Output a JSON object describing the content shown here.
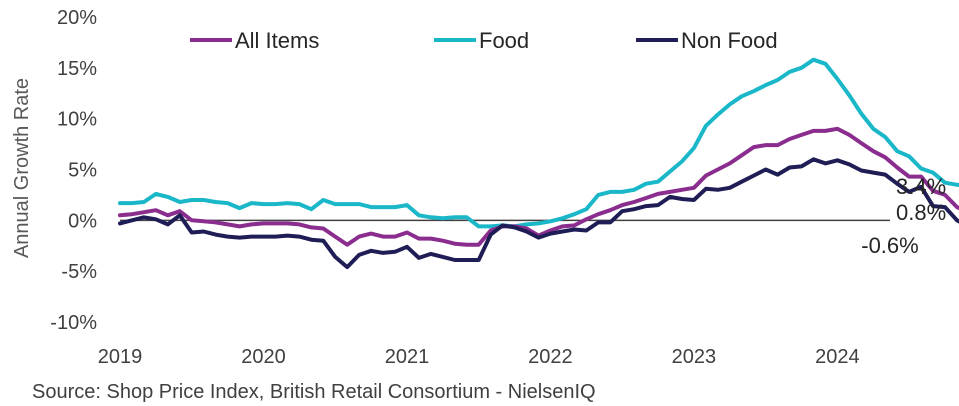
{
  "chart_data": {
    "type": "line",
    "ylabel": "Annual Growth Rate",
    "source": "Source: Shop Price Index, British Retail Consortium - NielsenIQ",
    "ylim": [
      -10,
      20
    ],
    "yticks": [
      -10,
      -5,
      0,
      5,
      10,
      15,
      20
    ],
    "ytick_labels": [
      "-10%",
      "-5%",
      "0%",
      "5%",
      "10%",
      "15%",
      "20%"
    ],
    "xlim": [
      2019.0,
      2024.75
    ],
    "xticks": [
      2019,
      2020,
      2021,
      2022,
      2023,
      2024
    ],
    "xtick_labels": [
      "2019",
      "2020",
      "2021",
      "2022",
      "2023",
      "2024"
    ],
    "legend_position": "top",
    "end_labels": [
      "3.4%",
      "0.8%",
      "-0.6%"
    ],
    "series": [
      {
        "name": "All Items",
        "color": "#8a2d8f",
        "values": [
          0.5,
          0.6,
          0.8,
          1.0,
          0.5,
          0.9,
          0.0,
          -0.1,
          -0.2,
          -0.4,
          -0.6,
          -0.4,
          -0.3,
          -0.3,
          -0.3,
          -0.4,
          -0.7,
          -0.8,
          -1.6,
          -2.4,
          -1.6,
          -1.3,
          -1.6,
          -1.6,
          -1.2,
          -1.8,
          -1.8,
          -2.0,
          -2.3,
          -2.4,
          -2.4,
          -1.0,
          -0.6,
          -0.6,
          -0.8,
          -1.5,
          -1.0,
          -0.6,
          -0.5,
          0.1,
          0.6,
          1.0,
          1.5,
          1.8,
          2.2,
          2.6,
          2.8,
          3.0,
          3.2,
          4.4,
          5.0,
          5.6,
          6.4,
          7.2,
          7.4,
          7.4,
          8.0,
          8.4,
          8.8,
          8.8,
          9.0,
          8.4,
          7.6,
          6.8,
          6.2,
          5.2,
          4.3,
          4.3,
          2.9,
          2.5,
          1.3,
          0.8
        ]
      },
      {
        "name": "Food",
        "color": "#1ab7c9",
        "values": [
          1.7,
          1.7,
          1.8,
          2.6,
          2.3,
          1.8,
          2.0,
          2.0,
          1.8,
          1.7,
          1.2,
          1.7,
          1.6,
          1.6,
          1.7,
          1.6,
          1.1,
          2.0,
          1.6,
          1.6,
          1.6,
          1.3,
          1.3,
          1.3,
          1.5,
          0.5,
          0.3,
          0.2,
          0.3,
          0.3,
          -0.6,
          -0.6,
          -0.5,
          -0.6,
          -0.4,
          -0.3,
          -0.1,
          0.2,
          0.6,
          1.1,
          2.5,
          2.8,
          2.8,
          3.0,
          3.6,
          3.8,
          4.8,
          5.8,
          7.1,
          9.3,
          10.4,
          11.4,
          12.2,
          12.7,
          13.3,
          13.8,
          14.6,
          15.0,
          15.8,
          15.4,
          13.9,
          12.3,
          10.5,
          9.0,
          8.2,
          6.8,
          6.3,
          5.1,
          4.7,
          3.7,
          3.5,
          3.4
        ]
      },
      {
        "name": "Non Food",
        "color": "#1f1d55",
        "values": [
          -0.3,
          0.0,
          0.3,
          0.1,
          -0.4,
          0.5,
          -1.2,
          -1.1,
          -1.4,
          -1.6,
          -1.7,
          -1.6,
          -1.6,
          -1.6,
          -1.5,
          -1.6,
          -1.9,
          -2.0,
          -3.6,
          -4.6,
          -3.4,
          -3.0,
          -3.2,
          -3.1,
          -2.6,
          -3.7,
          -3.3,
          -3.6,
          -3.9,
          -3.9,
          -3.9,
          -1.4,
          -0.5,
          -0.7,
          -1.1,
          -1.7,
          -1.3,
          -1.1,
          -0.9,
          -1.0,
          -0.2,
          -0.2,
          0.9,
          1.1,
          1.4,
          1.5,
          2.3,
          2.1,
          2.0,
          3.1,
          3.0,
          3.2,
          3.8,
          4.4,
          5.0,
          4.5,
          5.2,
          5.3,
          6.0,
          5.6,
          5.9,
          5.5,
          4.9,
          4.7,
          4.5,
          3.6,
          2.8,
          3.3,
          1.4,
          1.3,
          0.0,
          -0.6
        ]
      }
    ]
  }
}
